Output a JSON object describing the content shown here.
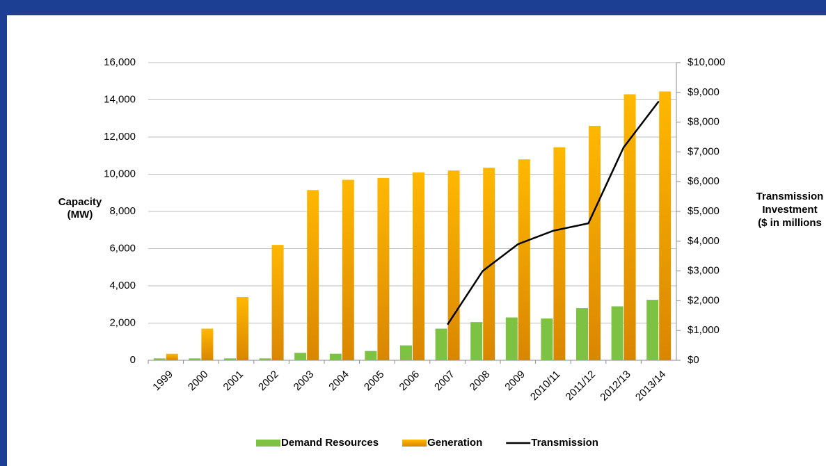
{
  "chart_data": {
    "type": "bar",
    "y_label": [
      "Capacity",
      "(MW)"
    ],
    "y2_label": [
      "Transmission",
      "Investment",
      "($ in millions"
    ],
    "categories": [
      "1999",
      "2000",
      "2001",
      "2002",
      "2003",
      "2004",
      "2005",
      "2006",
      "2007",
      "2008",
      "2009",
      "2010/11",
      "2011/12",
      "2012/13",
      "2013/14"
    ],
    "series": [
      {
        "name": "Demand Resources",
        "color": "#7dc242",
        "type": "bar",
        "values": [
          100,
          100,
          100,
          100,
          400,
          350,
          500,
          800,
          1700,
          2050,
          2300,
          2250,
          2800,
          2900,
          3250
        ]
      },
      {
        "name": "Generation",
        "color": "#f5a800",
        "type": "bar",
        "values": [
          350,
          1700,
          3400,
          6200,
          9150,
          9700,
          9800,
          10100,
          10200,
          10350,
          10800,
          11450,
          12600,
          14300,
          14450
        ]
      },
      {
        "name": "Transmission",
        "color": "#000000",
        "type": "line",
        "axis": "y2",
        "values": [
          null,
          null,
          null,
          null,
          null,
          null,
          null,
          null,
          1200,
          3000,
          3900,
          4350,
          4600,
          7150,
          8700
        ]
      }
    ],
    "ylim": [
      0,
      16000
    ],
    "yticks": [
      0,
      {
        "value": 2000,
        "label": "2,000"
      },
      {
        "value": 4000,
        "label": "4,000"
      },
      {
        "value": 6000,
        "label": "6,000"
      },
      {
        "value": 8000,
        "label": "8,000"
      },
      {
        "value": 10000,
        "label": "10,000"
      },
      {
        "value": 12000,
        "label": "12,000"
      },
      {
        "value": 14000,
        "label": "14,000"
      },
      {
        "value": 16000,
        "label": "16,000"
      }
    ],
    "y2lim": [
      0,
      10000
    ],
    "y2ticks": [
      {
        "value": 0,
        "label": "$0"
      },
      {
        "value": 1000,
        "label": "$1,000"
      },
      {
        "value": 2000,
        "label": "$2,000"
      },
      {
        "value": 3000,
        "label": "$3,000"
      },
      {
        "value": 4000,
        "label": "$4,000"
      },
      {
        "value": 5000,
        "label": "$5,000"
      },
      {
        "value": 6000,
        "label": "$6,000"
      },
      {
        "value": 7000,
        "label": "$7,000"
      },
      {
        "value": 8000,
        "label": "$8,000"
      },
      {
        "value": 9000,
        "label": "$9,000"
      },
      {
        "value": 10000,
        "label": "$10,000"
      }
    ],
    "grid": true
  }
}
